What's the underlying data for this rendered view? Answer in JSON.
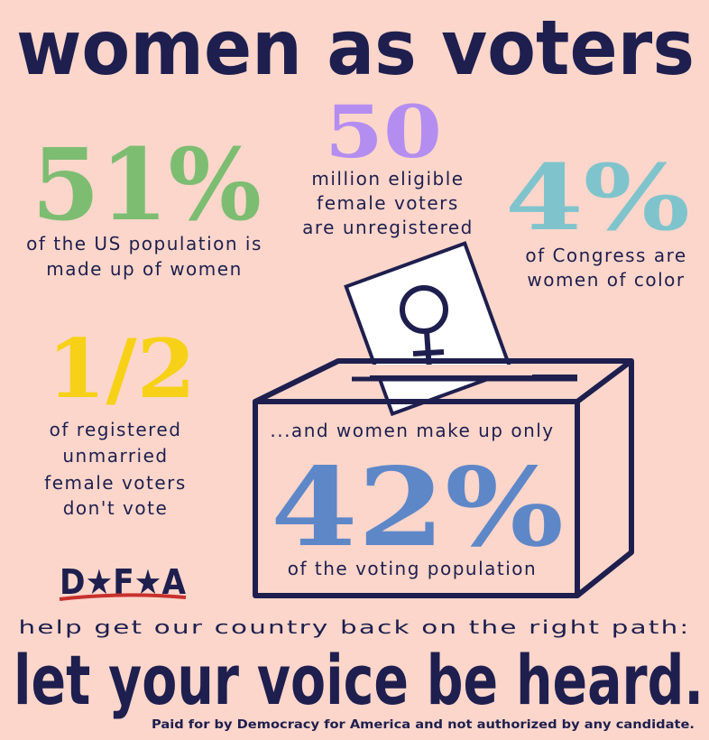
{
  "title": "women as voters",
  "stats": [
    {
      "figure": "51%",
      "lines": [
        "of the US population is",
        "made up of women"
      ]
    },
    {
      "figure": "50",
      "lines": [
        "million eligible",
        "female voters",
        "are unregistered"
      ]
    },
    {
      "figure": "4%",
      "lines": [
        "of Congress are",
        "women of color"
      ]
    },
    {
      "figure": "1/2",
      "lines": [
        "of registered",
        "unmarried",
        "female voters",
        "don't vote"
      ]
    }
  ],
  "ballot": {
    "intro": "...and women make up only",
    "figure": "42%",
    "caption": "of the voting population"
  },
  "logo": "D★F★A",
  "call": "help get our country back on the right path:",
  "slogan": "let your voice be heard.",
  "disclaimer": "Paid for by Democracy for America and not authorized by any candidate."
}
